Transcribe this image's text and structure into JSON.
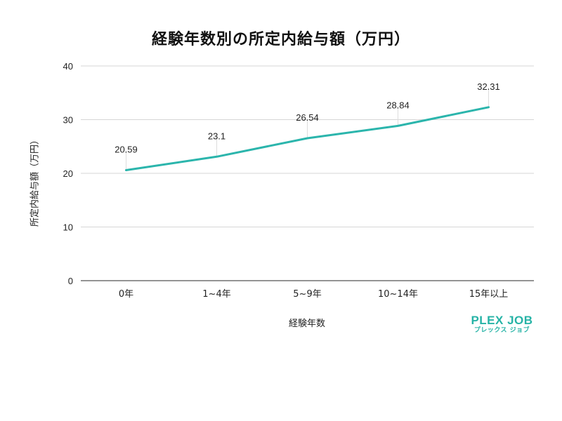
{
  "chart_data": {
    "type": "line",
    "title": "経験年数別の所定内給与額（万円）",
    "xlabel": "経験年数",
    "ylabel": "所定内給与額（万円）",
    "categories": [
      "0年",
      "1~4年",
      "5~9年",
      "10~14年",
      "15年以上"
    ],
    "series": [
      {
        "name": "所定内給与額",
        "values": [
          20.59,
          23.1,
          26.54,
          28.84,
          32.31
        ],
        "color": "#2bb5ac"
      }
    ],
    "data_labels": [
      "20.59",
      "23.1",
      "26.54",
      "28.84",
      "32.31"
    ],
    "ylim": [
      0,
      40
    ],
    "yticks": [
      0,
      10,
      20,
      30,
      40
    ],
    "grid": true,
    "legend": "none"
  },
  "logo": {
    "main": "PLEX JOB",
    "sub": "プレックス ジョブ",
    "color": "#26b3a6"
  }
}
